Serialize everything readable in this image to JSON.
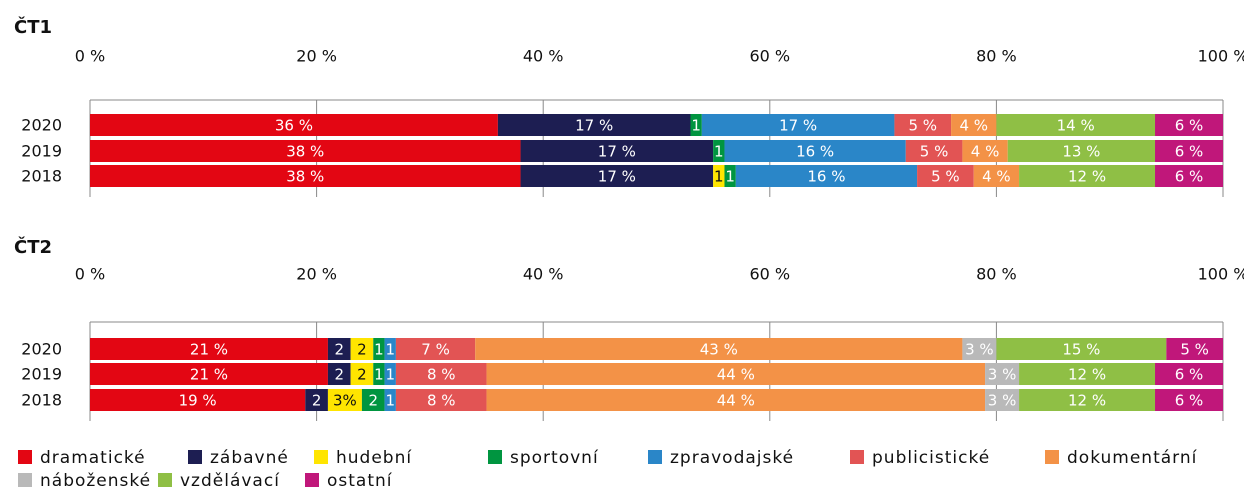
{
  "chart_data": [
    {
      "type": "bar",
      "title": "ČT1",
      "categories": [
        "2020",
        "2019",
        "2018"
      ],
      "xlim": [
        0,
        100
      ],
      "xticks": [
        {
          "value": 0,
          "label": "0 %"
        },
        {
          "value": 20,
          "label": "20 %"
        },
        {
          "value": 40,
          "label": "40 %"
        },
        {
          "value": 60,
          "label": "60 %"
        },
        {
          "value": 80,
          "label": "80 %"
        },
        {
          "value": 100,
          "label": "100 %"
        }
      ],
      "grid": true,
      "series": [
        {
          "values": [
            36,
            38,
            38
          ],
          "value_labels": [
            "36 %",
            "38 %",
            "38 %"
          ]
        },
        {
          "values": [
            17,
            17,
            17
          ],
          "value_labels": [
            "17 %",
            "17 %",
            "17 %"
          ]
        },
        {
          "values": [
            0,
            0,
            1
          ],
          "value_labels": [
            null,
            null,
            "1"
          ]
        },
        {
          "values": [
            1,
            1,
            1
          ],
          "value_labels": [
            "1",
            "1",
            "1"
          ]
        },
        {
          "values": [
            17,
            16,
            16
          ],
          "value_labels": [
            "17 %",
            "16 %",
            "16 %"
          ]
        },
        {
          "values": [
            5,
            5,
            5
          ],
          "value_labels": [
            "5 %",
            "5 %",
            "5 %"
          ]
        },
        {
          "values": [
            4,
            4,
            4
          ],
          "value_labels": [
            "4 %",
            "4 %",
            "4 %"
          ]
        },
        {
          "values": [
            0,
            0,
            0
          ],
          "value_labels": [
            null,
            null,
            null
          ]
        },
        {
          "values": [
            14,
            13,
            12
          ],
          "value_labels": [
            "14 %",
            "13 %",
            "12 %"
          ]
        },
        {
          "values": [
            6,
            6,
            6
          ],
          "value_labels": [
            "6 %",
            "6 %",
            "6 %"
          ]
        }
      ]
    },
    {
      "type": "bar",
      "title": "ČT2",
      "categories": [
        "2020",
        "2019",
        "2018"
      ],
      "xlim": [
        0,
        100
      ],
      "xticks": [
        {
          "value": 0,
          "label": "0 %"
        },
        {
          "value": 20,
          "label": "20 %"
        },
        {
          "value": 40,
          "label": "40 %"
        },
        {
          "value": 60,
          "label": "60 %"
        },
        {
          "value": 80,
          "label": "80 %"
        },
        {
          "value": 100,
          "label": "100 %"
        }
      ],
      "grid": true,
      "series": [
        {
          "values": [
            21,
            21,
            19
          ],
          "value_labels": [
            "21 %",
            "21 %",
            "19 %"
          ]
        },
        {
          "values": [
            2,
            2,
            2
          ],
          "value_labels": [
            "2",
            "2",
            "2"
          ]
        },
        {
          "values": [
            2,
            2,
            3
          ],
          "value_labels": [
            "2",
            "2",
            "3%"
          ]
        },
        {
          "values": [
            1,
            1,
            2
          ],
          "value_labels": [
            "1",
            "1",
            "2"
          ]
        },
        {
          "values": [
            1,
            1,
            1
          ],
          "value_labels": [
            "1",
            "1",
            "1"
          ]
        },
        {
          "values": [
            7,
            8,
            8
          ],
          "value_labels": [
            "7 %",
            "8 %",
            "8 %"
          ]
        },
        {
          "values": [
            43,
            44,
            44
          ],
          "value_labels": [
            "43 %",
            "44 %",
            "44 %"
          ]
        },
        {
          "values": [
            3,
            3,
            3
          ],
          "value_labels": [
            "3 %",
            "3 %",
            "3 %"
          ]
        },
        {
          "values": [
            15,
            12,
            12
          ],
          "value_labels": [
            "15 %",
            "12 %",
            "12 %"
          ]
        },
        {
          "values": [
            5,
            6,
            6
          ],
          "value_labels": [
            "5 %",
            "6 %",
            "6 %"
          ]
        }
      ]
    }
  ],
  "legend": [
    {
      "name": "dramatické",
      "color": "#e30613"
    },
    {
      "name": "zábavné",
      "color": "#1d1e52"
    },
    {
      "name": "hudební",
      "color": "#ffe500"
    },
    {
      "name": "sportovní",
      "color": "#009540"
    },
    {
      "name": "zpravodajské",
      "color": "#2a86c8"
    },
    {
      "name": "publicistické",
      "color": "#e25454"
    },
    {
      "name": "dokumentární",
      "color": "#f39247"
    },
    {
      "name": "náboženské",
      "color": "#b9b9b9"
    },
    {
      "name": "vzdělávací",
      "color": "#8fbf45"
    },
    {
      "name": "ostatní",
      "color": "#c0177a"
    }
  ]
}
